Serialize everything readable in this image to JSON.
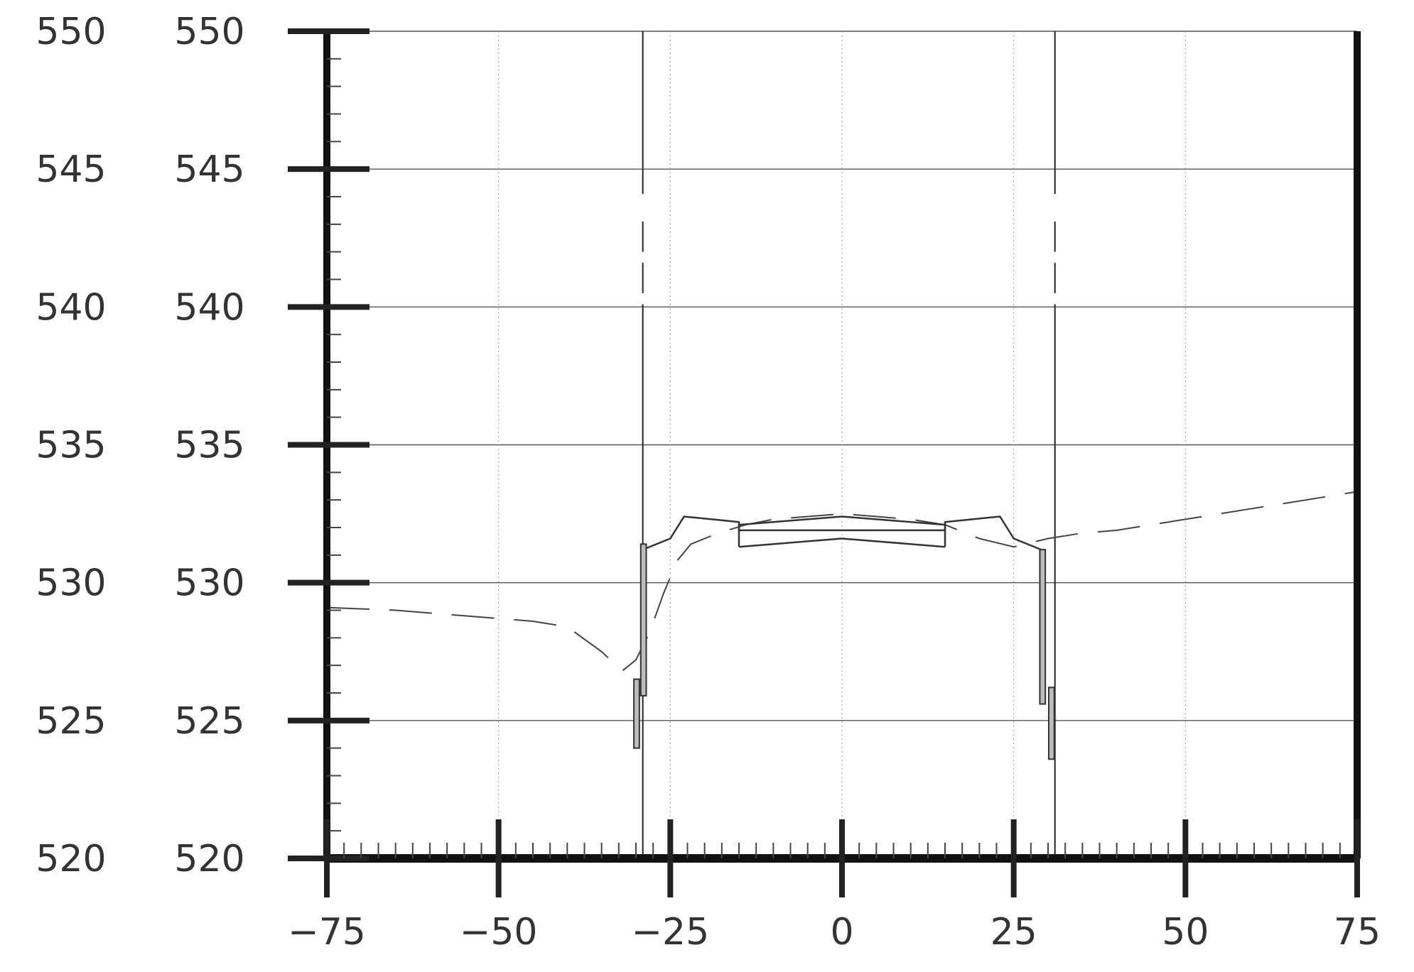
{
  "chart_data": {
    "type": "line",
    "x_ticks": [
      "−75",
      "−50",
      "−25",
      "0",
      "25",
      "50",
      "75"
    ],
    "y_ticks_outer": [
      "550",
      "545",
      "540",
      "535",
      "530",
      "525",
      "520"
    ],
    "y_ticks_inner": [
      "550",
      "545",
      "540",
      "535",
      "530",
      "525",
      "520"
    ],
    "xlim": [
      -75,
      75
    ],
    "ylim": [
      520,
      550
    ],
    "grid": true,
    "series": [
      {
        "role": "existing-ground",
        "style": "dashed",
        "x": [
          -75,
          -65,
          -55,
          -45,
          -40,
          -35,
          -32,
          -30,
          -28,
          -26,
          -24,
          -22,
          -18,
          -14,
          -10,
          -5,
          0,
          5,
          10,
          15,
          20,
          25,
          30,
          35,
          40,
          45,
          50,
          55,
          60,
          65,
          70,
          75
        ],
        "y": [
          529.1,
          529.0,
          528.8,
          528.6,
          528.4,
          527.5,
          526.8,
          527.2,
          528.2,
          529.6,
          530.8,
          531.4,
          531.8,
          532.1,
          532.3,
          532.4,
          532.5,
          532.4,
          532.3,
          532.1,
          531.6,
          531.3,
          531.6,
          531.8,
          531.9,
          532.1,
          532.3,
          532.5,
          532.7,
          532.9,
          533.1,
          533.3
        ]
      },
      {
        "role": "design-outline",
        "style": "solid",
        "x": [
          -29,
          -25,
          -23,
          -15,
          -15,
          15,
          15,
          23,
          25,
          29
        ],
        "y": [
          531.2,
          531.6,
          532.4,
          532.2,
          531.9,
          531.9,
          532.2,
          532.4,
          531.6,
          531.2
        ]
      },
      {
        "role": "pavement-top",
        "style": "solid",
        "x": [
          -15,
          0,
          15
        ],
        "y": [
          532.1,
          532.4,
          532.1
        ]
      },
      {
        "role": "pavement-bottom",
        "style": "solid",
        "x": [
          -15,
          0,
          15
        ],
        "y": [
          531.3,
          531.6,
          531.3
        ]
      }
    ],
    "reference_lines_x": [
      -29,
      31
    ]
  }
}
